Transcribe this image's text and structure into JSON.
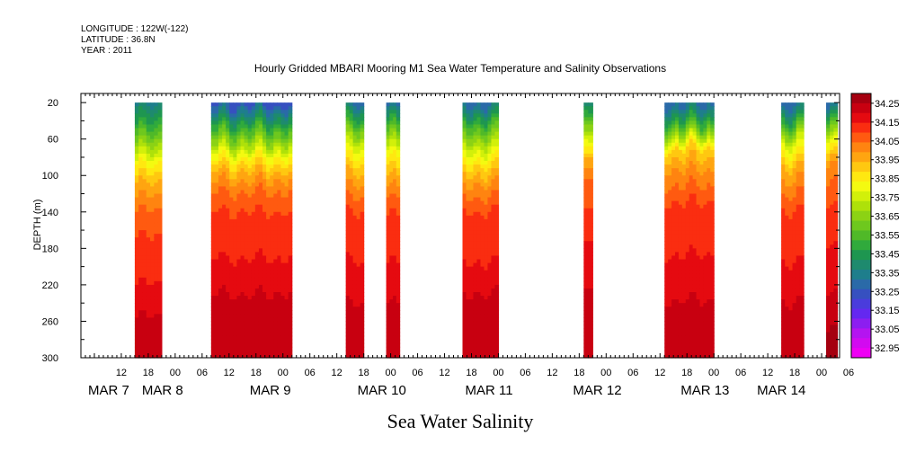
{
  "header": {
    "longitude": "LONGITUDE : 122W(-122)",
    "latitude": "LATITUDE : 36.8N",
    "year": "YEAR : 2011"
  },
  "chart_data": {
    "type": "heatmap",
    "title": "Hourly Gridded MBARI Mooring M1 Sea Water Temperature and Salinity Observations",
    "xlabel": "Sea Water Salinity",
    "ylabel": "DEPTH (m)",
    "ylim": [
      300,
      10
    ],
    "y_ticks": [
      20,
      60,
      100,
      140,
      180,
      220,
      260,
      300
    ],
    "x_hour_ticks": [
      {
        "hour": 12,
        "label": "12"
      },
      {
        "hour": 18,
        "label": "18"
      },
      {
        "hour": 24,
        "label": "00"
      },
      {
        "hour": 30,
        "label": "06"
      },
      {
        "hour": 36,
        "label": "12"
      },
      {
        "hour": 42,
        "label": "18"
      },
      {
        "hour": 48,
        "label": "00"
      },
      {
        "hour": 54,
        "label": "06"
      },
      {
        "hour": 60,
        "label": "12"
      },
      {
        "hour": 66,
        "label": "18"
      },
      {
        "hour": 72,
        "label": "00"
      },
      {
        "hour": 78,
        "label": "06"
      },
      {
        "hour": 84,
        "label": "12"
      },
      {
        "hour": 90,
        "label": "18"
      },
      {
        "hour": 96,
        "label": "00"
      },
      {
        "hour": 102,
        "label": "06"
      },
      {
        "hour": 108,
        "label": "12"
      },
      {
        "hour": 114,
        "label": "18"
      },
      {
        "hour": 120,
        "label": "00"
      },
      {
        "hour": 126,
        "label": "06"
      },
      {
        "hour": 132,
        "label": "12"
      },
      {
        "hour": 138,
        "label": "18"
      },
      {
        "hour": 144,
        "label": "00"
      },
      {
        "hour": 150,
        "label": "06"
      },
      {
        "hour": 156,
        "label": "12"
      },
      {
        "hour": 162,
        "label": "18"
      },
      {
        "hour": 168,
        "label": "00"
      },
      {
        "hour": 174,
        "label": "06"
      }
    ],
    "x_day_labels": [
      {
        "hour": 3,
        "label": "MAR  7"
      },
      {
        "hour": 15,
        "label": "MAR  8"
      },
      {
        "hour": 39,
        "label": "MAR  9"
      },
      {
        "hour": 63,
        "label": "MAR 10"
      },
      {
        "hour": 87,
        "label": "MAR 11"
      },
      {
        "hour": 111,
        "label": "MAR 12"
      },
      {
        "hour": 135,
        "label": "MAR 13"
      },
      {
        "hour": 152,
        "label": "MAR 14"
      }
    ],
    "x_range_hours": [
      3,
      172
    ],
    "colorbar": {
      "labels": [
        "34.25",
        "34.15",
        "34.05",
        "33.95",
        "33.85",
        "33.75",
        "33.65",
        "33.55",
        "33.45",
        "33.35",
        "33.25",
        "33.15",
        "33.05",
        "32.95"
      ],
      "colors_top_to_bottom": [
        "#a50010",
        "#c80010",
        "#e50a10",
        "#fa2d10",
        "#ff5a10",
        "#ff8410",
        "#ffa510",
        "#ffc810",
        "#ffe810",
        "#f4fa10",
        "#d2f00a",
        "#aee10a",
        "#8cd214",
        "#6ec81e",
        "#50b928",
        "#30aa3c",
        "#1e9650",
        "#1e8a6e",
        "#1e7e8c",
        "#2a6aa8",
        "#3650c0",
        "#4a3cdc",
        "#6428f0",
        "#8c1ef0",
        "#b414f0",
        "#d20af0",
        "#ee00f4"
      ]
    },
    "segments": [
      {
        "start": 15.0,
        "end": 21.0,
        "profile": [
          [
            20,
            33.35
          ],
          [
            45,
            33.5
          ],
          [
            70,
            33.7
          ],
          [
            90,
            33.85
          ],
          [
            110,
            33.95
          ],
          [
            130,
            34.02
          ],
          [
            150,
            34.08
          ],
          [
            200,
            34.12
          ],
          [
            240,
            34.18
          ],
          [
            270,
            34.22
          ],
          [
            300,
            34.2
          ]
        ]
      },
      {
        "start": 32.0,
        "end": 50.0,
        "profile": [
          [
            20,
            33.25
          ],
          [
            40,
            33.45
          ],
          [
            60,
            33.65
          ],
          [
            75,
            33.8
          ],
          [
            90,
            33.92
          ],
          [
            110,
            34.02
          ],
          [
            130,
            34.08
          ],
          [
            160,
            34.13
          ],
          [
            200,
            34.15
          ],
          [
            230,
            34.2
          ],
          [
            260,
            34.24
          ],
          [
            300,
            34.23
          ]
        ]
      },
      {
        "start": 62.0,
        "end": 66.0,
        "profile": [
          [
            20,
            33.3
          ],
          [
            40,
            33.5
          ],
          [
            60,
            33.7
          ],
          [
            80,
            33.85
          ],
          [
            100,
            33.95
          ],
          [
            125,
            34.05
          ],
          [
            150,
            34.12
          ],
          [
            220,
            34.16
          ],
          [
            250,
            34.22
          ],
          [
            300,
            34.22
          ]
        ]
      },
      {
        "start": 71.0,
        "end": 74.0,
        "profile": [
          [
            20,
            33.3
          ],
          [
            40,
            33.5
          ],
          [
            60,
            33.7
          ],
          [
            80,
            33.85
          ],
          [
            100,
            33.95
          ],
          [
            125,
            34.05
          ],
          [
            150,
            34.12
          ],
          [
            220,
            34.16
          ],
          [
            250,
            34.22
          ],
          [
            300,
            34.22
          ]
        ]
      },
      {
        "start": 88.0,
        "end": 96.0,
        "profile": [
          [
            20,
            33.3
          ],
          [
            40,
            33.5
          ],
          [
            65,
            33.72
          ],
          [
            90,
            33.9
          ],
          [
            110,
            34.0
          ],
          [
            140,
            34.1
          ],
          [
            200,
            34.15
          ],
          [
            230,
            34.2
          ],
          [
            260,
            34.24
          ],
          [
            300,
            34.22
          ]
        ]
      },
      {
        "start": 115.0,
        "end": 117.0,
        "profile": [
          [
            20,
            33.35
          ],
          [
            40,
            33.55
          ],
          [
            60,
            33.75
          ],
          [
            85,
            33.95
          ],
          [
            110,
            34.05
          ],
          [
            160,
            34.13
          ],
          [
            230,
            34.2
          ],
          [
            260,
            34.24
          ],
          [
            300,
            34.22
          ]
        ]
      },
      {
        "start": 133.0,
        "end": 144.0,
        "profile": [
          [
            20,
            33.3
          ],
          [
            40,
            33.5
          ],
          [
            55,
            33.7
          ],
          [
            70,
            33.9
          ],
          [
            95,
            34.0
          ],
          [
            130,
            34.1
          ],
          [
            180,
            34.14
          ],
          [
            225,
            34.18
          ],
          [
            260,
            34.24
          ],
          [
            300,
            34.22
          ]
        ]
      },
      {
        "start": 159.0,
        "end": 164.0,
        "profile": [
          [
            20,
            33.3
          ],
          [
            40,
            33.5
          ],
          [
            60,
            33.75
          ],
          [
            85,
            33.92
          ],
          [
            110,
            34.02
          ],
          [
            140,
            34.1
          ],
          [
            200,
            34.15
          ],
          [
            240,
            34.2
          ],
          [
            265,
            34.24
          ],
          [
            300,
            34.22
          ]
        ]
      },
      {
        "start": 169.0,
        "end": 171.5,
        "profile": [
          [
            20,
            33.3
          ],
          [
            40,
            33.55
          ],
          [
            60,
            33.8
          ],
          [
            85,
            34.0
          ],
          [
            120,
            34.08
          ],
          [
            170,
            34.14
          ],
          [
            230,
            34.2
          ],
          [
            265,
            34.25
          ],
          [
            300,
            34.25
          ]
        ]
      }
    ]
  }
}
